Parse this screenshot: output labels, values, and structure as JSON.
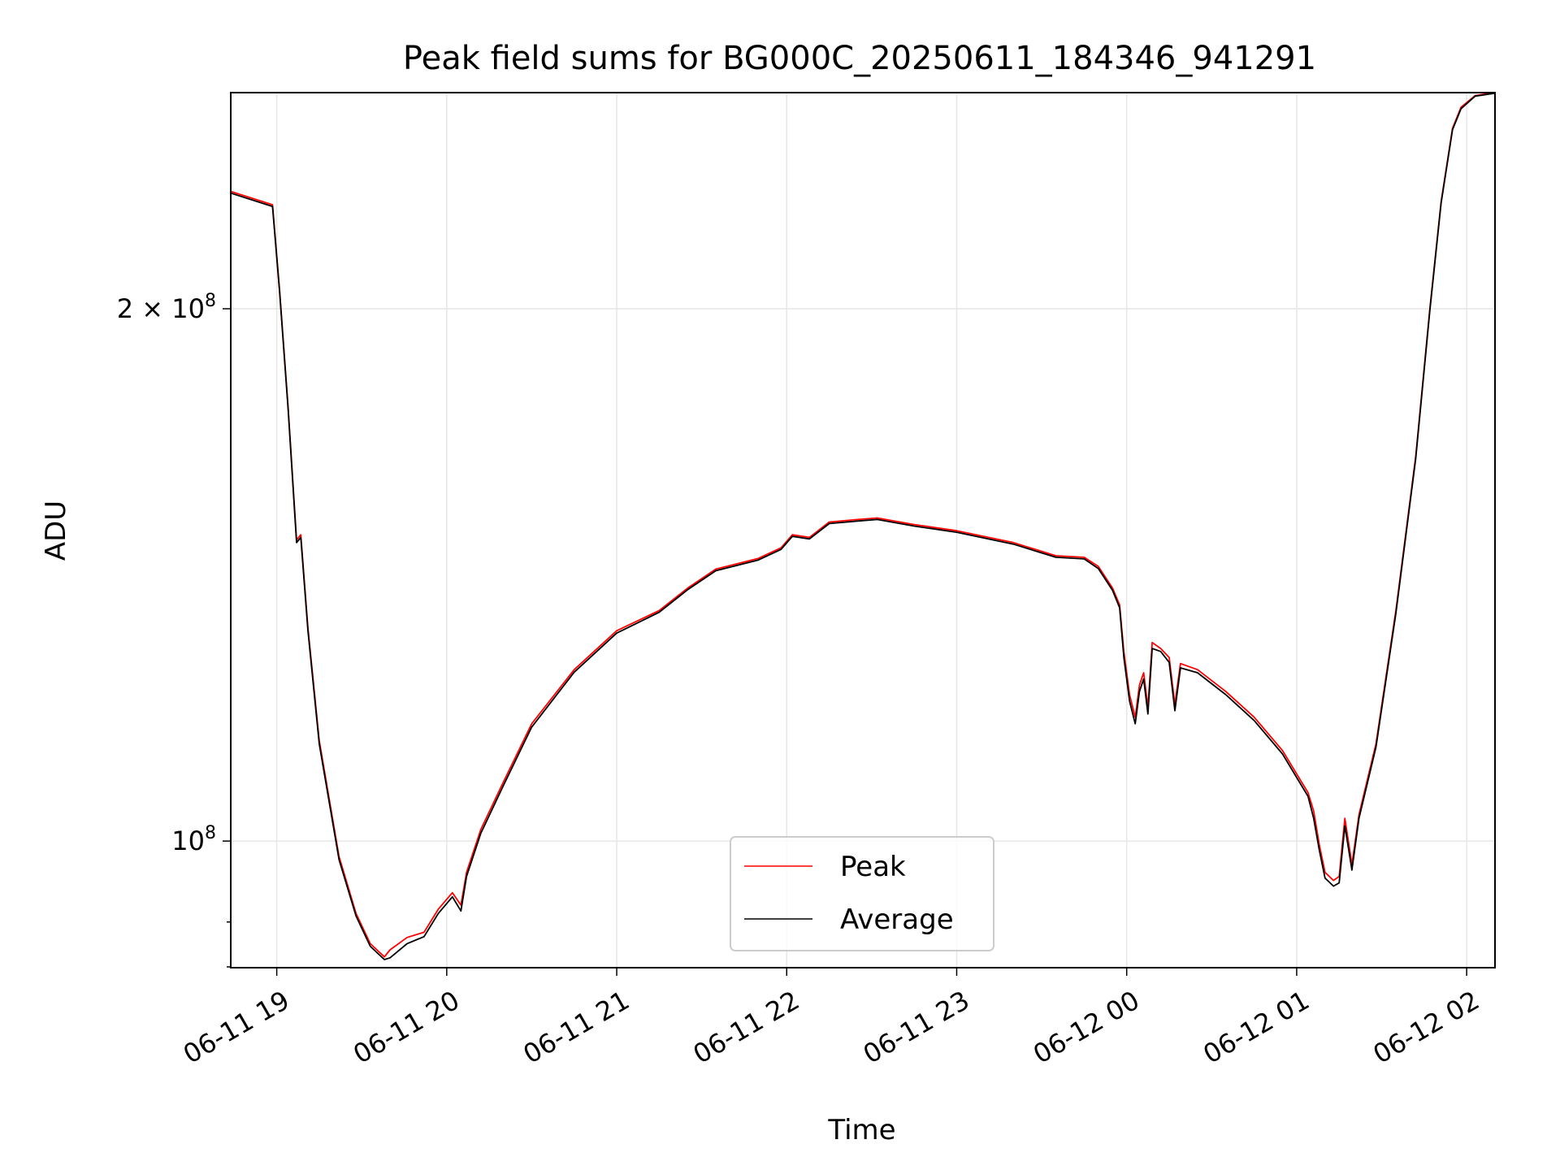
{
  "chart_data": {
    "type": "line",
    "title": "Peak field sums for BG000C_20250611_184346_941291",
    "xlabel": "Time",
    "ylabel": "ADU",
    "y_scale": "log",
    "ylim": [
      84800000,
      265000000
    ],
    "xlim": [
      "2025-06-11 18:43:46",
      "2025-06-12 02:10:00"
    ],
    "grid": true,
    "legend_position": "lower-center",
    "x_ticks": [
      {
        "value": "2025-06-11 19:00",
        "label": "06-11 19"
      },
      {
        "value": "2025-06-11 20:00",
        "label": "06-11 20"
      },
      {
        "value": "2025-06-11 21:00",
        "label": "06-11 21"
      },
      {
        "value": "2025-06-11 22:00",
        "label": "06-11 22"
      },
      {
        "value": "2025-06-11 23:00",
        "label": "06-11 23"
      },
      {
        "value": "2025-06-12 00:00",
        "label": "06-12 00"
      },
      {
        "value": "2025-06-12 01:00",
        "label": "06-12 01"
      },
      {
        "value": "2025-06-12 02:00",
        "label": "06-12 02"
      }
    ],
    "y_ticks": [
      {
        "value": 200000000,
        "label_mantissa": "2",
        "label_times": "×",
        "label_base": "10",
        "label_exp": "8"
      },
      {
        "value": 100000000,
        "label_mantissa": "",
        "label_times": "",
        "label_base": "10",
        "label_exp": "8"
      }
    ],
    "series": [
      {
        "name": "Peak",
        "color": "#ff0000",
        "points": [
          [
            "2025-06-11 18:43:46",
            233000000
          ],
          [
            "2025-06-11 18:58:30",
            229000000
          ],
          [
            "2025-06-11 19:01:00",
            205000000
          ],
          [
            "2025-06-11 19:04:00",
            176000000
          ],
          [
            "2025-06-11 19:07:00",
            148000000
          ],
          [
            "2025-06-11 19:08:30",
            149000000
          ],
          [
            "2025-06-11 19:11:00",
            132000000
          ],
          [
            "2025-06-11 19:15:00",
            114000000
          ],
          [
            "2025-06-11 19:22:00",
            98000000
          ],
          [
            "2025-06-11 19:28:00",
            91000000
          ],
          [
            "2025-06-11 19:33:00",
            87500000
          ],
          [
            "2025-06-11 19:38:00",
            86000000
          ],
          [
            "2025-06-11 19:40:00",
            86800000
          ],
          [
            "2025-06-11 19:46:00",
            88200000
          ],
          [
            "2025-06-11 19:52:00",
            88800000
          ],
          [
            "2025-06-11 19:57:00",
            91500000
          ],
          [
            "2025-06-11 20:02:00",
            93500000
          ],
          [
            "2025-06-11 20:05:00",
            92000000
          ],
          [
            "2025-06-11 20:07:00",
            96000000
          ],
          [
            "2025-06-11 20:12:00",
            101500000
          ],
          [
            "2025-06-11 20:20:00",
            108000000
          ],
          [
            "2025-06-11 20:30:00",
            116500000
          ],
          [
            "2025-06-11 20:45:00",
            125000000
          ],
          [
            "2025-06-11 21:00:00",
            131500000
          ],
          [
            "2025-06-11 21:15:00",
            135000000
          ],
          [
            "2025-06-11 21:25:00",
            139000000
          ],
          [
            "2025-06-11 21:35:00",
            142500000
          ],
          [
            "2025-06-11 21:50:00",
            144500000
          ],
          [
            "2025-06-11 21:58:00",
            146500000
          ],
          [
            "2025-06-11 22:02:00",
            149000000
          ],
          [
            "2025-06-11 22:08:00",
            148500000
          ],
          [
            "2025-06-11 22:15:00",
            151500000
          ],
          [
            "2025-06-11 22:25:00",
            152000000
          ],
          [
            "2025-06-11 22:32:00",
            152300000
          ],
          [
            "2025-06-11 22:45:00",
            151000000
          ],
          [
            "2025-06-11 23:00:00",
            149800000
          ],
          [
            "2025-06-11 23:20:00",
            147500000
          ],
          [
            "2025-06-11 23:35:00",
            145000000
          ],
          [
            "2025-06-11 23:45:00",
            144700000
          ],
          [
            "2025-06-11 23:50:00",
            143000000
          ],
          [
            "2025-06-11 23:55:00",
            139000000
          ],
          [
            "2025-06-11 23:57:30",
            136000000
          ],
          [
            "2025-06-11 23:59:00",
            128000000
          ],
          [
            "2025-06-12 00:01:00",
            121000000
          ],
          [
            "2025-06-12 00:03:00",
            117500000
          ],
          [
            "2025-06-12 00:04:30",
            122500000
          ],
          [
            "2025-06-12 00:06:00",
            124500000
          ],
          [
            "2025-06-12 00:07:30",
            119000000
          ],
          [
            "2025-06-12 00:09:00",
            129500000
          ],
          [
            "2025-06-12 00:12:00",
            128500000
          ],
          [
            "2025-06-12 00:15:00",
            127000000
          ],
          [
            "2025-06-12 00:17:00",
            119500000
          ],
          [
            "2025-06-12 00:19:00",
            126000000
          ],
          [
            "2025-06-12 00:25:00",
            125000000
          ],
          [
            "2025-06-12 00:35:00",
            121500000
          ],
          [
            "2025-06-12 00:45:00",
            117500000
          ],
          [
            "2025-06-12 00:55:00",
            112500000
          ],
          [
            "2025-06-12 01:04:00",
            106500000
          ],
          [
            "2025-06-12 01:06:00",
            104000000
          ],
          [
            "2025-06-12 01:08:00",
            99500000
          ],
          [
            "2025-06-12 01:10:00",
            96000000
          ],
          [
            "2025-06-12 01:13:00",
            95000000
          ],
          [
            "2025-06-12 01:15:00",
            95500000
          ],
          [
            "2025-06-12 01:17:00",
            103000000
          ],
          [
            "2025-06-12 01:19:30",
            97000000
          ],
          [
            "2025-06-12 01:22:00",
            103500000
          ],
          [
            "2025-06-12 01:28:00",
            113500000
          ],
          [
            "2025-06-12 01:35:00",
            135000000
          ],
          [
            "2025-06-12 01:42:00",
            165000000
          ],
          [
            "2025-06-12 01:47:00",
            200000000
          ],
          [
            "2025-06-12 01:51:00",
            230000000
          ],
          [
            "2025-06-12 01:55:00",
            253000000
          ],
          [
            "2025-06-12 01:58:00",
            260000000
          ],
          [
            "2025-06-12 02:03:00",
            264000000
          ],
          [
            "2025-06-12 02:10:00",
            265000000
          ]
        ]
      },
      {
        "name": "Average",
        "color": "#000000",
        "points": [
          [
            "2025-06-11 18:43:46",
            232500000
          ],
          [
            "2025-06-11 18:58:30",
            228500000
          ],
          [
            "2025-06-11 19:01:00",
            204500000
          ],
          [
            "2025-06-11 19:04:00",
            175500000
          ],
          [
            "2025-06-11 19:07:00",
            147500000
          ],
          [
            "2025-06-11 19:08:30",
            148500000
          ],
          [
            "2025-06-11 19:11:00",
            131500000
          ],
          [
            "2025-06-11 19:15:00",
            113500000
          ],
          [
            "2025-06-11 19:22:00",
            97600000
          ],
          [
            "2025-06-11 19:28:00",
            90700000
          ],
          [
            "2025-06-11 19:33:00",
            87200000
          ],
          [
            "2025-06-11 19:38:00",
            85700000
          ],
          [
            "2025-06-11 19:40:00",
            85900000
          ],
          [
            "2025-06-11 19:46:00",
            87500000
          ],
          [
            "2025-06-11 19:52:00",
            88300000
          ],
          [
            "2025-06-11 19:57:00",
            91000000
          ],
          [
            "2025-06-11 20:02:00",
            93000000
          ],
          [
            "2025-06-11 20:05:00",
            91300000
          ],
          [
            "2025-06-11 20:07:00",
            95500000
          ],
          [
            "2025-06-11 20:12:00",
            101000000
          ],
          [
            "2025-06-11 20:20:00",
            107500000
          ],
          [
            "2025-06-11 20:30:00",
            116000000
          ],
          [
            "2025-06-11 20:45:00",
            124600000
          ],
          [
            "2025-06-11 21:00:00",
            131100000
          ],
          [
            "2025-06-11 21:15:00",
            134700000
          ],
          [
            "2025-06-11 21:25:00",
            138700000
          ],
          [
            "2025-06-11 21:35:00",
            142200000
          ],
          [
            "2025-06-11 21:50:00",
            144200000
          ],
          [
            "2025-06-11 21:58:00",
            146200000
          ],
          [
            "2025-06-11 22:02:00",
            148700000
          ],
          [
            "2025-06-11 22:08:00",
            148200000
          ],
          [
            "2025-06-11 22:15:00",
            151200000
          ],
          [
            "2025-06-11 22:25:00",
            151700000
          ],
          [
            "2025-06-11 22:32:00",
            152000000
          ],
          [
            "2025-06-11 22:45:00",
            150700000
          ],
          [
            "2025-06-11 23:00:00",
            149500000
          ],
          [
            "2025-06-11 23:20:00",
            147200000
          ],
          [
            "2025-06-11 23:35:00",
            144700000
          ],
          [
            "2025-06-11 23:45:00",
            144400000
          ],
          [
            "2025-06-11 23:50:00",
            142600000
          ],
          [
            "2025-06-11 23:55:00",
            138600000
          ],
          [
            "2025-06-11 23:57:30",
            135500000
          ],
          [
            "2025-06-11 23:59:00",
            127000000
          ],
          [
            "2025-06-12 00:01:00",
            120000000
          ],
          [
            "2025-06-12 00:03:00",
            116500000
          ],
          [
            "2025-06-12 00:04:30",
            121500000
          ],
          [
            "2025-06-12 00:06:00",
            123500000
          ],
          [
            "2025-06-12 00:07:30",
            118000000
          ],
          [
            "2025-06-12 00:09:00",
            128500000
          ],
          [
            "2025-06-12 00:12:00",
            128000000
          ],
          [
            "2025-06-12 00:15:00",
            126200000
          ],
          [
            "2025-06-12 00:17:00",
            118500000
          ],
          [
            "2025-06-12 00:19:00",
            125300000
          ],
          [
            "2025-06-12 00:25:00",
            124500000
          ],
          [
            "2025-06-12 00:35:00",
            121000000
          ],
          [
            "2025-06-12 00:45:00",
            117000000
          ],
          [
            "2025-06-12 00:55:00",
            112000000
          ],
          [
            "2025-06-12 01:04:00",
            106000000
          ],
          [
            "2025-06-12 01:06:00",
            103000000
          ],
          [
            "2025-06-12 01:08:00",
            98800000
          ],
          [
            "2025-06-12 01:10:00",
            95300000
          ],
          [
            "2025-06-12 01:13:00",
            94300000
          ],
          [
            "2025-06-12 01:15:00",
            94700000
          ],
          [
            "2025-06-12 01:17:00",
            102000000
          ],
          [
            "2025-06-12 01:19:30",
            96300000
          ],
          [
            "2025-06-12 01:22:00",
            103000000
          ],
          [
            "2025-06-12 01:28:00",
            113000000
          ],
          [
            "2025-06-12 01:35:00",
            134500000
          ],
          [
            "2025-06-12 01:42:00",
            164500000
          ],
          [
            "2025-06-12 01:47:00",
            199500000
          ],
          [
            "2025-06-12 01:51:00",
            229500000
          ],
          [
            "2025-06-12 01:55:00",
            252500000
          ],
          [
            "2025-06-12 01:58:00",
            259500000
          ],
          [
            "2025-06-12 02:03:00",
            263800000
          ],
          [
            "2025-06-12 02:10:00",
            264800000
          ]
        ]
      }
    ]
  }
}
